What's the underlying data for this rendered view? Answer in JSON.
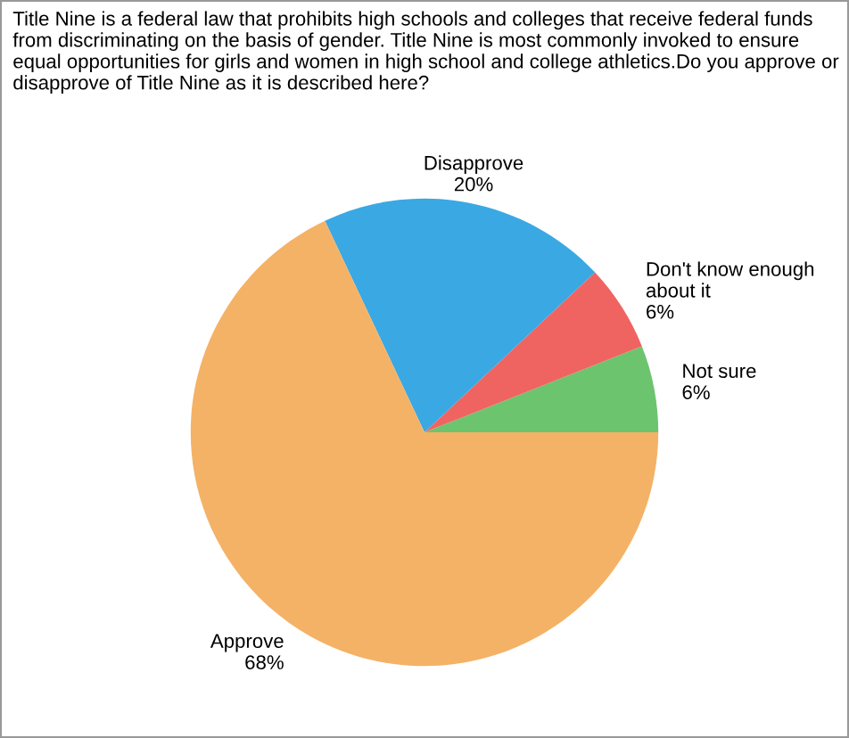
{
  "chart_data": {
    "type": "pie",
    "title": "Title Nine is a federal law that prohibits high schools and colleges that receive federal funds from discriminating on the basis of gender. Title Nine is most commonly invoked to ensure equal opportunities for girls and women in high school and college athletics.Do you approve or disapprove of Title Nine as it is described here?",
    "categories": [
      "Not sure",
      "Don't know enough about it",
      "Disapprove",
      "Approve"
    ],
    "values": [
      6,
      6,
      20,
      68
    ],
    "value_labels": [
      "6%",
      "6%",
      "20%",
      "68%"
    ],
    "colors": [
      "#6cc46f",
      "#ef6461",
      "#3aa8e3",
      "#f4b266"
    ]
  }
}
